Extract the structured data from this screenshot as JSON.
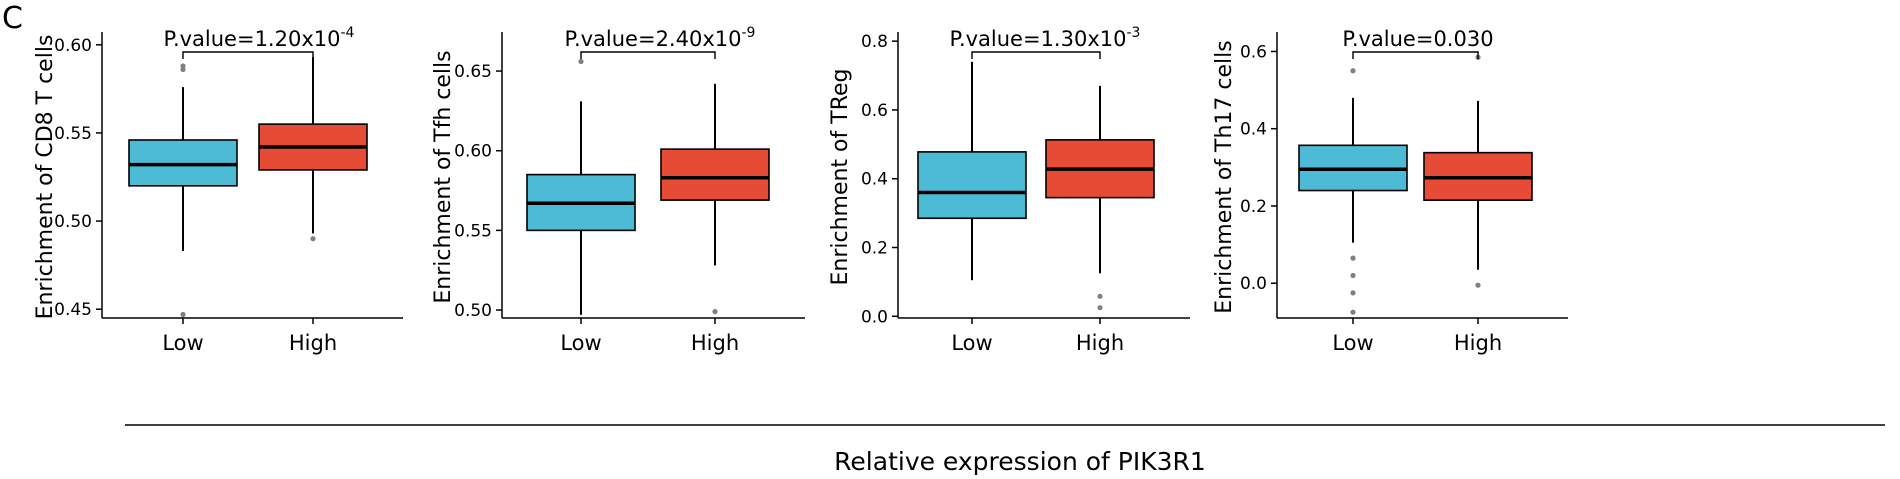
{
  "panel_label": "C",
  "shared_xlabel": "Relative expression of PIK3R1",
  "colors": {
    "low": "#4dbbd5",
    "high": "#e64b35",
    "outlier": "#808080",
    "line": "#000000"
  },
  "chart_data": [
    {
      "type": "box",
      "ylabel": "Enrichment of CD8 T cells",
      "pvalue": {
        "prefix": "P.value=1.20x10",
        "exp": "-4"
      },
      "ylim": [
        0.445,
        0.605
      ],
      "yticks": [
        0.45,
        0.5,
        0.55,
        0.6
      ],
      "yticklabels": [
        "0.45",
        "0.50",
        "0.55",
        "0.60"
      ],
      "categories": [
        "Low",
        "High"
      ],
      "boxes": [
        {
          "group": "Low",
          "q1": 0.52,
          "median": 0.532,
          "q3": 0.546,
          "whisker_low": 0.483,
          "whisker_high": 0.576,
          "outliers": [
            0.588,
            0.586,
            0.447
          ]
        },
        {
          "group": "High",
          "q1": 0.529,
          "median": 0.542,
          "q3": 0.555,
          "whisker_low": 0.493,
          "whisker_high": 0.593,
          "outliers": [
            0.49
          ]
        }
      ]
    },
    {
      "type": "box",
      "ylabel": "Enrichment of Tfh cells",
      "pvalue": {
        "prefix": "P.value=2.40x10",
        "exp": "-9"
      },
      "ylim": [
        0.495,
        0.672
      ],
      "yticks": [
        0.5,
        0.55,
        0.6,
        0.65
      ],
      "yticklabels": [
        "0.50",
        "0.55",
        "0.60",
        "0.65"
      ],
      "categories": [
        "Low",
        "High"
      ],
      "boxes": [
        {
          "group": "Low",
          "q1": 0.55,
          "median": 0.567,
          "q3": 0.585,
          "whisker_low": 0.497,
          "whisker_high": 0.631,
          "outliers": [
            0.656
          ]
        },
        {
          "group": "High",
          "q1": 0.569,
          "median": 0.583,
          "q3": 0.601,
          "whisker_low": 0.528,
          "whisker_high": 0.642,
          "outliers": [
            0.499
          ]
        }
      ]
    },
    {
      "type": "box",
      "ylabel": "Enrichment of TReg",
      "pvalue": {
        "prefix": "P.value=1.30x10",
        "exp": "-3"
      },
      "ylim": [
        -0.005,
        0.815
      ],
      "yticks": [
        0.0,
        0.2,
        0.4,
        0.6,
        0.8
      ],
      "yticklabels": [
        "0.0",
        "0.2",
        "0.4",
        "0.6",
        "0.8"
      ],
      "categories": [
        "Low",
        "High"
      ],
      "boxes": [
        {
          "group": "Low",
          "q1": 0.285,
          "median": 0.36,
          "q3": 0.478,
          "whisker_low": 0.105,
          "whisker_high": 0.74,
          "outliers": []
        },
        {
          "group": "High",
          "q1": 0.345,
          "median": 0.428,
          "q3": 0.513,
          "whisker_low": 0.125,
          "whisker_high": 0.67,
          "outliers": [
            0.058,
            0.025
          ]
        }
      ]
    },
    {
      "type": "box",
      "ylabel": "Enrichment of Th17 cells",
      "pvalue": {
        "prefix": "P.value=0.030",
        "exp": ""
      },
      "ylim": [
        -0.09,
        0.64
      ],
      "yticks": [
        0.0,
        0.2,
        0.4,
        0.6
      ],
      "yticklabels": [
        "0.0",
        "0.2",
        "0.4",
        "0.6"
      ],
      "categories": [
        "Low",
        "High"
      ],
      "boxes": [
        {
          "group": "Low",
          "q1": 0.24,
          "median": 0.295,
          "q3": 0.357,
          "whisker_low": 0.105,
          "whisker_high": 0.48,
          "outliers": [
            0.55,
            0.065,
            0.02,
            -0.025,
            -0.075
          ]
        },
        {
          "group": "High",
          "q1": 0.215,
          "median": 0.273,
          "q3": 0.338,
          "whisker_low": 0.035,
          "whisker_high": 0.472,
          "outliers": [
            0.585,
            -0.005
          ]
        }
      ]
    }
  ]
}
